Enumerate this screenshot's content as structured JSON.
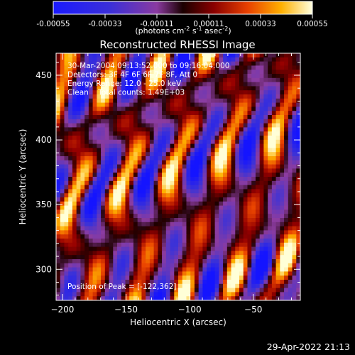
{
  "colorbar": {
    "tick_labels": [
      "-0.00055",
      "-0.00033",
      "-0.00011",
      "0.00011",
      "0.00033",
      "0.00055"
    ],
    "unit_label": "(photons cm",
    "unit_sup1": "-2",
    "unit_mid": " s",
    "unit_sup2": "-1",
    "unit_end": " asec",
    "unit_sup3": "-2",
    "unit_close": ")"
  },
  "chart_data": {
    "type": "heatmap",
    "title": "Reconstructed RHESSI Image",
    "xlabel": "Heliocentric X (arcsec)",
    "ylabel": "Heliocentric Y (arcsec)",
    "xlim": [
      -205,
      -13
    ],
    "ylim": [
      276,
      467
    ],
    "x_ticks": [
      -200,
      -150,
      -100,
      -50
    ],
    "y_ticks": [
      300,
      350,
      400,
      450
    ],
    "x_tick_labels": [
      "−200",
      "−150",
      "−100",
      "−50"
    ],
    "y_tick_labels": [
      "300",
      "350",
      "400",
      "450"
    ],
    "colorbar_range": [
      -0.00055,
      0.00055
    ],
    "annotations": [
      "30-Mar-2004 09:13:52.000 to 09:16:04.000",
      "Detectors: 3F 4F 6F 6F 7F 8F, Att 0",
      "Energy Range: 12.0 - 25.0 keV",
      "Clean    Total counts: 1.49E+03"
    ],
    "peak_label": "Position of Peak = [-122,362]",
    "peak": [
      -122,
      362
    ]
  },
  "footer": {
    "timestamp": "29-Apr-2022 21:13"
  }
}
